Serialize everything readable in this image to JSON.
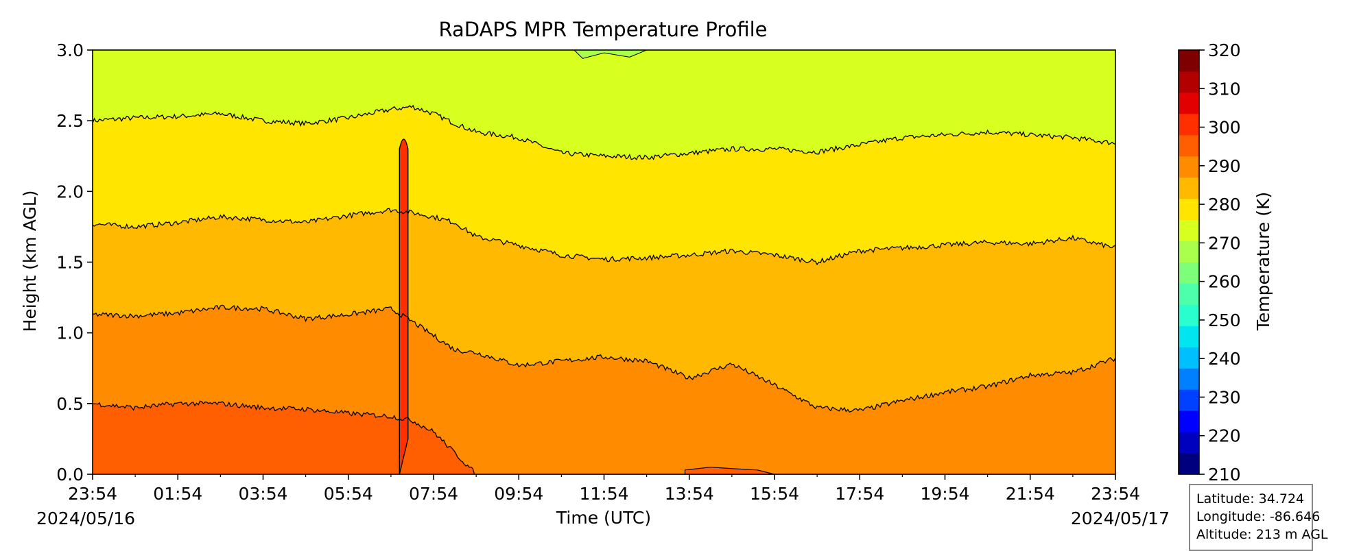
{
  "chart_data": {
    "type": "contour",
    "title": "RaDAPS MPR Temperature Profile",
    "xlabel": "Time (UTC)",
    "ylabel": "Height (km AGL)",
    "x_ticks": [
      "23:54",
      "01:54",
      "03:54",
      "05:54",
      "07:54",
      "09:54",
      "11:54",
      "13:54",
      "15:54",
      "17:54",
      "19:54",
      "21:54",
      "23:54"
    ],
    "x_hours": [
      0,
      2,
      4,
      6,
      8,
      10,
      12,
      14,
      16,
      18,
      20,
      22,
      24
    ],
    "xlim_hours": [
      0,
      24
    ],
    "date_start": "2024/05/16",
    "date_end": "2024/05/17",
    "y_ticks": [
      "0.0",
      "0.5",
      "1.0",
      "1.5",
      "2.0",
      "2.5",
      "3.0"
    ],
    "ylim": [
      0,
      3
    ],
    "colorbar": {
      "label": "Temperature (K)",
      "ticks": [
        "210",
        "220",
        "230",
        "240",
        "250",
        "260",
        "270",
        "280",
        "290",
        "300",
        "310",
        "320"
      ],
      "range": [
        210,
        320
      ],
      "step": 5,
      "colors": [
        "#00007f",
        "#0000bf",
        "#0000ff",
        "#0040ff",
        "#0080ff",
        "#00bfff",
        "#00e5f0",
        "#29ffce",
        "#4dffaa",
        "#7dff7a",
        "#aaff4d",
        "#d7ff1f",
        "#ffe500",
        "#ffb900",
        "#ff8c00",
        "#ff5f00",
        "#ff2f00",
        "#e30000",
        "#b20000",
        "#7f0000"
      ]
    },
    "contour_levels": [
      {
        "range": [
          295,
          300
        ],
        "color": "#ff5f00"
      },
      {
        "range": [
          290,
          295
        ],
        "color": "#ff8c00"
      },
      {
        "range": [
          285,
          290
        ],
        "color": "#ffb900"
      },
      {
        "range": [
          280,
          285
        ],
        "color": "#ffe500"
      },
      {
        "range": [
          275,
          280
        ],
        "color": "#d7ff1f"
      }
    ],
    "isotherm_heights_km": {
      "295": {
        "t": [
          0,
          1,
          2,
          3,
          4,
          5,
          6,
          7,
          7.5,
          8,
          8.5,
          9,
          10,
          11,
          12,
          13,
          14,
          15,
          16,
          17,
          18,
          19,
          20,
          21,
          22,
          23,
          24
        ],
        "h": [
          0.5,
          0.47,
          0.5,
          0.5,
          0.47,
          0.46,
          0.43,
          0.41,
          0.38,
          0.3,
          0.15,
          0,
          0,
          0,
          0,
          0,
          0,
          0,
          0,
          0,
          0,
          0,
          0,
          0,
          0,
          0,
          0
        ]
      },
      "290": {
        "t": [
          0,
          1,
          2,
          3,
          4,
          5,
          6,
          7,
          7.5,
          8,
          8.5,
          9,
          10,
          11,
          12,
          13,
          14,
          15,
          16,
          17,
          18,
          19,
          20,
          21,
          22,
          23,
          24
        ],
        "h": [
          1.13,
          1.12,
          1.14,
          1.18,
          1.17,
          1.1,
          1.13,
          1.17,
          1.08,
          0.98,
          0.88,
          0.86,
          0.77,
          0.8,
          0.83,
          0.8,
          0.68,
          0.78,
          0.63,
          0.47,
          0.45,
          0.52,
          0.58,
          0.62,
          0.7,
          0.72,
          0.82
        ]
      },
      "285": {
        "t": [
          0,
          1,
          2,
          3,
          4,
          5,
          6,
          7,
          7.5,
          8,
          8.5,
          9,
          10,
          11,
          12,
          13,
          14,
          15,
          16,
          17,
          18,
          19,
          20,
          21,
          22,
          23,
          24
        ],
        "h": [
          1.77,
          1.75,
          1.78,
          1.82,
          1.8,
          1.78,
          1.83,
          1.87,
          1.85,
          1.82,
          1.78,
          1.68,
          1.62,
          1.55,
          1.52,
          1.53,
          1.55,
          1.58,
          1.55,
          1.5,
          1.58,
          1.6,
          1.62,
          1.64,
          1.63,
          1.67,
          1.6
        ]
      },
      "280": {
        "t": [
          0,
          1,
          2,
          3,
          4,
          5,
          6,
          7,
          7.5,
          8,
          8.5,
          9,
          10,
          11,
          12,
          13,
          14,
          15,
          16,
          17,
          18,
          19,
          20,
          21,
          22,
          23,
          24
        ],
        "h": [
          2.5,
          2.52,
          2.53,
          2.55,
          2.5,
          2.48,
          2.52,
          2.58,
          2.6,
          2.55,
          2.48,
          2.42,
          2.38,
          2.27,
          2.25,
          2.24,
          2.27,
          2.3,
          2.3,
          2.28,
          2.33,
          2.38,
          2.4,
          2.42,
          2.4,
          2.38,
          2.34
        ]
      }
    },
    "warm_column": {
      "t_start": 7.2,
      "t_end": 7.4,
      "top_km": 2.4,
      "color": "#ff2f00"
    },
    "warm_pocket": {
      "t": [
        13.9,
        14.5,
        15,
        15.6,
        16
      ],
      "h": [
        0.03,
        0.05,
        0.04,
        0.03,
        0
      ]
    },
    "cool_pocket_top": {
      "t": [
        11.3,
        11.5,
        12,
        12.6,
        13
      ],
      "h": [
        3,
        2.94,
        2.98,
        2.95,
        3
      ]
    }
  },
  "info": {
    "latitude": "Latitude: 34.724",
    "longitude": "Longitude: -86.646",
    "altitude": "Altitude: 213 m AGL"
  }
}
